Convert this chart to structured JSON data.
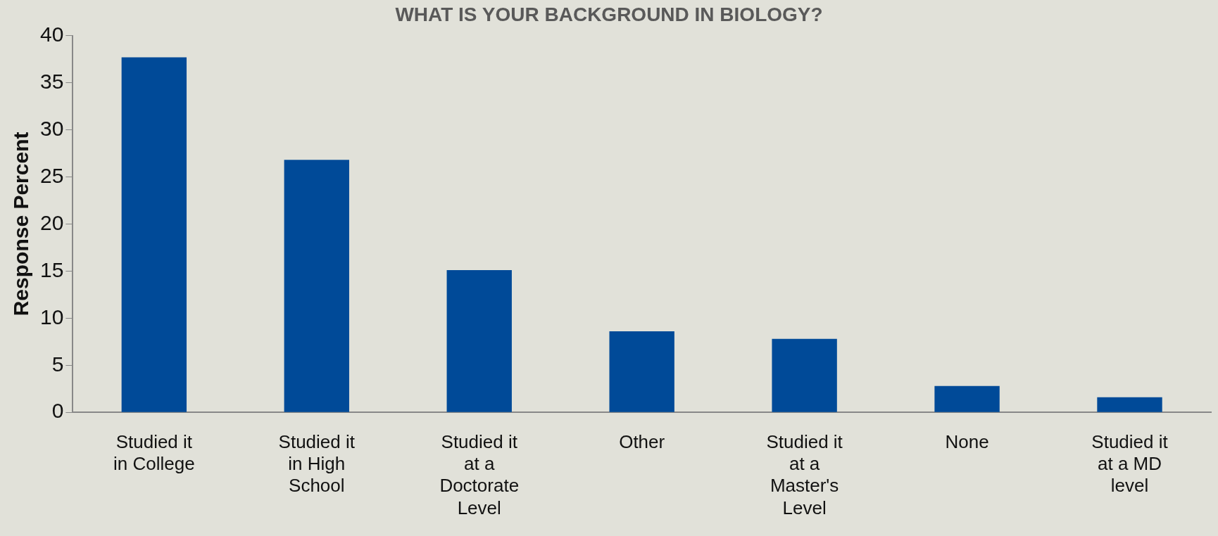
{
  "chart_data": {
    "type": "bar",
    "title": "WHAT IS YOUR BACKGROUND IN BIOLOGY?",
    "ylabel": "Response Percent",
    "categories": [
      "Studied it in College",
      "Studied it in High School",
      "Studied it at a Doctorate Level",
      "Other",
      "Studied it at a Master's Level",
      "None",
      "Studied it at a MD level"
    ],
    "values": [
      37.7,
      26.8,
      15.1,
      8.6,
      7.8,
      2.8,
      1.6
    ],
    "color": "#004a98",
    "ylim": [
      0,
      40
    ],
    "yticks": [
      0,
      5,
      10,
      15,
      20,
      25,
      30,
      35,
      40
    ],
    "grid": false,
    "legend": false
  }
}
